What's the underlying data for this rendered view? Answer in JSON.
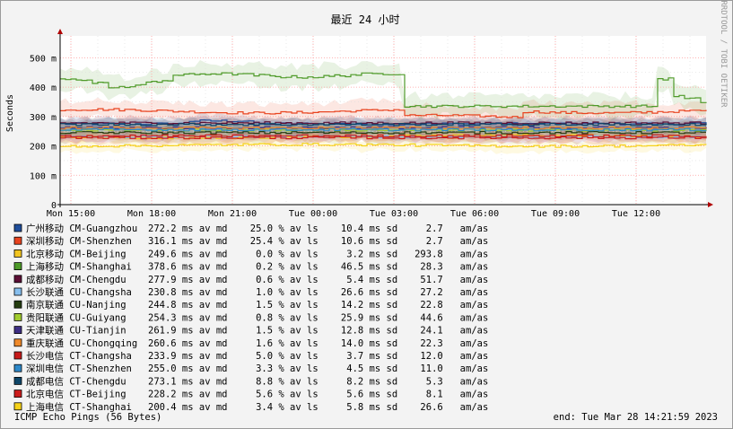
{
  "chart_data": {
    "type": "line",
    "title": "最近 24 小时",
    "ylabel": "Seconds",
    "side_label": "RRDTOOL / TOBI OETIKER",
    "y_ticks": [
      "0",
      "100 m",
      "200 m",
      "300 m",
      "400 m",
      "500 m"
    ],
    "ylim": [
      0,
      550
    ],
    "x_ticks": [
      "Mon 15:00",
      "Mon 18:00",
      "Mon 21:00",
      "Tue 00:00",
      "Tue 03:00",
      "Tue 06:00",
      "Tue 09:00",
      "Tue 12:00"
    ],
    "xlim_hours": [
      14.6,
      38.6
    ],
    "grid": true,
    "series": [
      {
        "name": "广州移动 CM-Guangzhou",
        "color": "#1f4e9b",
        "stats": "272.2 ms av md    25.0 % av ls    10.4 ms sd     2.7   am/as"
      },
      {
        "name": "深圳移动 CM-Shenzhen",
        "color": "#e8431f",
        "stats": "316.1 ms av md    25.4 % av ls    10.6 ms sd     2.7   am/as"
      },
      {
        "name": "北京移动 CM-Beijing",
        "color": "#f2c521",
        "stats": "249.6 ms av md     0.0 % av ls     3.2 ms sd   293.8   am/as"
      },
      {
        "name": "上海移动 CM-Shanghai",
        "color": "#4e9a29",
        "stats": "378.6 ms av md     0.2 % av ls    46.5 ms sd    28.3   am/as"
      },
      {
        "name": "成都移动 CM-Chengdu",
        "color": "#5c0f35",
        "stats": "277.9 ms av md     0.6 % av ls     5.4 ms sd    51.7   am/as"
      },
      {
        "name": "长沙联通 CU-Changsha",
        "color": "#87bfee",
        "stats": "230.8 ms av md     1.0 % av ls    26.6 ms sd    27.2   am/as"
      },
      {
        "name": "南京联通 CU-Nanjing",
        "color": "#253d10",
        "stats": "244.8 ms av md     1.5 % av ls    14.2 ms sd    22.8   am/as"
      },
      {
        "name": "贵阳联通 CU-Guiyang",
        "color": "#a2cc2e",
        "stats": "254.3 ms av md     0.8 % av ls    25.9 ms sd    44.6   am/as"
      },
      {
        "name": "天津联通 CU-Tianjin",
        "color": "#3e2e84",
        "stats": "261.9 ms av md     1.5 % av ls    12.8 ms sd    24.1   am/as"
      },
      {
        "name": "重庆联通 CU-Chongqing",
        "color": "#f08a2b",
        "stats": "260.6 ms av md     1.6 % av ls    14.0 ms sd    22.3   am/as"
      },
      {
        "name": "长沙电信 CT-Changsha",
        "color": "#c71a1a",
        "stats": "233.9 ms av md     5.0 % av ls     3.7 ms sd    12.0   am/as"
      },
      {
        "name": "深圳电信 CT-Shenzhen",
        "color": "#2d88c9",
        "stats": "255.0 ms av md     3.3 % av ls     4.5 ms sd    11.0   am/as"
      },
      {
        "name": "成都电信 CT-Chengdu",
        "color": "#0e4668",
        "stats": "273.1 ms av md     8.8 % av ls     8.2 ms sd     5.3   am/as"
      },
      {
        "name": "北京电信 CT-Beijing",
        "color": "#cc1c1c",
        "stats": "228.2 ms av md     5.6 % av ls     5.6 ms sd     8.1   am/as"
      },
      {
        "name": "上海电信 CT-Shanghai",
        "color": "#f5d21a",
        "stats": "200.4 ms av md     3.4 % av ls     5.8 ms sd    26.6   am/as"
      }
    ],
    "footer_left": "ICMP Echo Pings (56 Bytes)",
    "footer_right": "end: Tue Mar 28 14:21:59 2023"
  }
}
